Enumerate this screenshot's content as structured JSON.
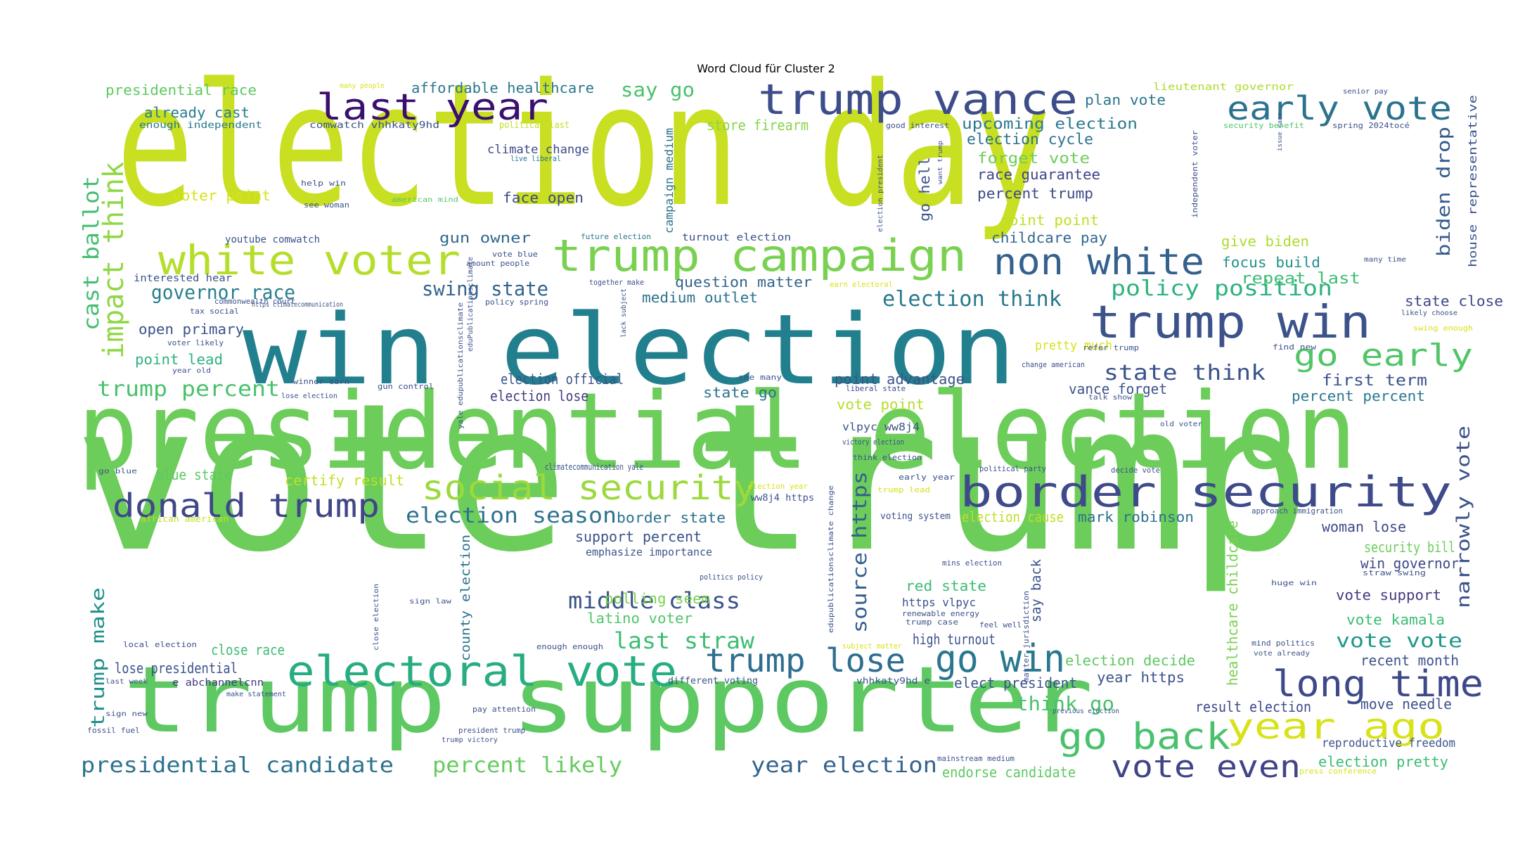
{
  "title": "Word Cloud für Cluster 2",
  "words": [
    {
      "text": "election day",
      "color": "#c8df22"
    },
    {
      "text": "vote trump",
      "color": "#6ccd5a"
    },
    {
      "text": "win election",
      "color": "#22808e"
    },
    {
      "text": "presidential election",
      "color": "#6ccd5a"
    },
    {
      "text": "trump supporter",
      "color": "#5ec962"
    },
    {
      "text": "last year",
      "color": "#3b0f6f"
    },
    {
      "text": "trump vance",
      "color": "#3d4d8a"
    },
    {
      "text": "early vote",
      "color": "#2c728e"
    },
    {
      "text": "white voter",
      "color": "#b5de2b"
    },
    {
      "text": "trump campaign",
      "color": "#7ad151"
    },
    {
      "text": "non white",
      "color": "#34618d"
    },
    {
      "text": "trump win",
      "color": "#3b528b"
    },
    {
      "text": "impact think",
      "color": "#8fd744"
    },
    {
      "text": "cast ballot",
      "color": "#42be71"
    },
    {
      "text": "border security",
      "color": "#3e4a89"
    },
    {
      "text": "donald trump",
      "color": "#3f4788"
    },
    {
      "text": "social security",
      "color": "#9bd93c"
    },
    {
      "text": "electoral vote",
      "color": "#27ad81"
    },
    {
      "text": "trump lose",
      "color": "#2e6e8e"
    },
    {
      "text": "go win",
      "color": "#2a788e"
    },
    {
      "text": "long time",
      "color": "#3e4989"
    },
    {
      "text": "year ago",
      "color": "#d8e219"
    },
    {
      "text": "go back",
      "color": "#4ac16d"
    },
    {
      "text": "vote even",
      "color": "#414487"
    },
    {
      "text": "go early",
      "color": "#52c569"
    },
    {
      "text": "governor race",
      "color": "#287d8e"
    },
    {
      "text": "swing state",
      "color": "#33638d"
    },
    {
      "text": "election think",
      "color": "#2a788e"
    },
    {
      "text": "policy position",
      "color": "#2db27d"
    },
    {
      "text": "state think",
      "color": "#3b528b"
    },
    {
      "text": "trump percent",
      "color": "#4ac16d"
    },
    {
      "text": "presidential candidate",
      "color": "#2c728e"
    },
    {
      "text": "percent likely",
      "color": "#65cb5e"
    },
    {
      "text": "year election",
      "color": "#33638d"
    },
    {
      "text": "election season",
      "color": "#2c728e"
    },
    {
      "text": "middle class",
      "color": "#3b528b"
    },
    {
      "text": "last straw",
      "color": "#3dbc74"
    },
    {
      "text": "source https",
      "color": "#355f8d"
    },
    {
      "text": "narrowly vote",
      "color": "#3b528b"
    },
    {
      "text": "biden drop",
      "color": "#365c8d"
    },
    {
      "text": "trump make",
      "color": "#21918c"
    },
    {
      "text": "think go",
      "color": "#4ac16d"
    },
    {
      "text": "vote vote",
      "color": "#1f988b"
    },
    {
      "text": "say go",
      "color": "#4ac16d"
    },
    {
      "text": "presidential race",
      "color": "#5ec962"
    },
    {
      "text": "affordable healthcare",
      "color": "#2a788e"
    },
    {
      "text": "already cast",
      "color": "#287d8e"
    },
    {
      "text": "upcoming election",
      "color": "#2a788e"
    },
    {
      "text": "election cycle",
      "color": "#2c728e"
    },
    {
      "text": "forget vote",
      "color": "#6ccd5a"
    },
    {
      "text": "race guarantee",
      "color": "#414487"
    },
    {
      "text": "percent trump",
      "color": "#3e4989"
    },
    {
      "text": "point point",
      "color": "#c0df25"
    },
    {
      "text": "childcare pay",
      "color": "#31688e"
    },
    {
      "text": "give biden",
      "color": "#addc30"
    },
    {
      "text": "focus build",
      "color": "#21918c"
    },
    {
      "text": "repeat last",
      "color": "#3dbc74"
    },
    {
      "text": "state close",
      "color": "#3e4989"
    },
    {
      "text": "first term",
      "color": "#3b528b"
    },
    {
      "text": "percent percent",
      "color": "#2a788e"
    },
    {
      "text": "plan vote",
      "color": "#2a788e"
    },
    {
      "text": "store firearm",
      "color": "#86d549"
    },
    {
      "text": "go hell",
      "color": "#3b528b"
    },
    {
      "text": "climate change",
      "color": "#3e4989"
    },
    {
      "text": "face open",
      "color": "#3e4989"
    },
    {
      "text": "gun owner",
      "color": "#31688e"
    },
    {
      "text": "question matter",
      "color": "#33638d"
    },
    {
      "text": "medium outlet",
      "color": "#2c728e"
    },
    {
      "text": "open primary",
      "color": "#3b528b"
    },
    {
      "text": "point lead",
      "color": "#2db27d"
    },
    {
      "text": "point advantage",
      "color": "#3b528b"
    },
    {
      "text": "election official",
      "color": "#3b528b"
    },
    {
      "text": "election lose",
      "color": "#443a83"
    },
    {
      "text": "state go",
      "color": "#2c728e"
    },
    {
      "text": "vance forget",
      "color": "#3b528b"
    },
    {
      "text": "vote point",
      "color": "#b5de2b"
    },
    {
      "text": "blue state",
      "color": "#5ec962"
    },
    {
      "text": "certify result",
      "color": "#c0df25"
    },
    {
      "text": "border state",
      "color": "#2c728e"
    },
    {
      "text": "support percent",
      "color": "#3b528b"
    },
    {
      "text": "polling seem",
      "color": "#7ad151"
    },
    {
      "text": "latino voter",
      "color": "#52c569"
    },
    {
      "text": "close race",
      "color": "#3dbc74"
    },
    {
      "text": "lose presidential",
      "color": "#3b528b"
    },
    {
      "text": "red state",
      "color": "#3dbc74"
    },
    {
      "text": "high turnout",
      "color": "#3b528b"
    },
    {
      "text": "mark robinson",
      "color": "#2c728e"
    },
    {
      "text": "election cause",
      "color": "#c0df25"
    },
    {
      "text": "woman lose",
      "color": "#3e4989"
    },
    {
      "text": "security bill",
      "color": "#6ccd5a"
    },
    {
      "text": "win governor",
      "color": "#3e4989"
    },
    {
      "text": "vote support",
      "color": "#443a83"
    },
    {
      "text": "vote kamala",
      "color": "#3dbc74"
    },
    {
      "text": "recent month",
      "color": "#3b528b"
    },
    {
      "text": "election decide",
      "color": "#5ec962"
    },
    {
      "text": "elect president",
      "color": "#3b528b"
    },
    {
      "text": "year https",
      "color": "#3b528b"
    },
    {
      "text": "result election",
      "color": "#3e4989"
    },
    {
      "text": "move needle",
      "color": "#3b528b"
    },
    {
      "text": "reproductive freedom",
      "color": "#3b528b"
    },
    {
      "text": "election pretty",
      "color": "#3dbc74"
    },
    {
      "text": "endorse candidate",
      "color": "#5ec962"
    },
    {
      "text": "voter point",
      "color": "#d8e219"
    },
    {
      "text": "pretty much",
      "color": "#d8e219"
    },
    {
      "text": "healthcare childcare",
      "color": "#7ad151"
    },
    {
      "text": "house representative",
      "color": "#3b528b"
    },
    {
      "text": "county election",
      "color": "#2c728e"
    },
    {
      "text": "campaign medium",
      "color": "#2c728e"
    },
    {
      "text": "say back",
      "color": "#3b528b"
    },
    {
      "text": "https vlpyc",
      "color": "#3b528b"
    },
    {
      "text": "vlpyc ww8j4",
      "color": "#3b528b"
    },
    {
      "text": "lieutenant governor",
      "color": "#addc30"
    },
    {
      "text": "emphasize importance",
      "color": "#3b528b"
    },
    {
      "text": "youtube comwatch",
      "color": "#3b528b"
    },
    {
      "text": "interested hear",
      "color": "#3b528b"
    },
    {
      "text": "e abchannelcnn",
      "color": "#443a83"
    },
    {
      "text": "ww8j4 https",
      "color": "#3b528b"
    },
    {
      "text": "voting system",
      "color": "#3b528b"
    },
    {
      "text": "turnout election",
      "color": "#3b528b"
    },
    {
      "text": "comwatch vhhkaty9hd",
      "color": "#3b528b"
    },
    {
      "text": "enough independent",
      "color": "#2a788e"
    },
    {
      "text": "political last",
      "color": "#c0df25"
    },
    {
      "text": "help win",
      "color": "#3b528b"
    },
    {
      "text": "see woman",
      "color": "#3b528b"
    },
    {
      "text": "vote blue",
      "color": "#3b528b"
    },
    {
      "text": "amount people",
      "color": "#3b528b"
    },
    {
      "text": "policy spring",
      "color": "#3b528b"
    },
    {
      "text": "together make",
      "color": "#3b528b"
    },
    {
      "text": "future election",
      "color": "#2a788e"
    },
    {
      "text": "good interest",
      "color": "#3b528b"
    },
    {
      "text": "earn electoral",
      "color": "#d8e219"
    },
    {
      "text": "many people",
      "color": "#d8e219"
    },
    {
      "text": "senior pay",
      "color": "#3b528b"
    },
    {
      "text": "security benefit",
      "color": "#52c569"
    },
    {
      "text": "spring 2024tocé",
      "color": "#3b528b"
    },
    {
      "text": "live liberal",
      "color": "#2a788e"
    },
    {
      "text": "american mind",
      "color": "#52c569"
    },
    {
      "text": "tax social",
      "color": "#3b528b"
    },
    {
      "text": "commonwealth court",
      "color": "#3b528b"
    },
    {
      "text": "voter likely",
      "color": "#3b528b"
    },
    {
      "text": "year old",
      "color": "#3b528b"
    },
    {
      "text": "winner earn",
      "color": "#3b528b"
    },
    {
      "text": "lose election",
      "color": "#3b528b"
    },
    {
      "text": "gun control",
      "color": "#3b528b"
    },
    {
      "text": "see many",
      "color": "#3b528b"
    },
    {
      "text": "liberal state",
      "color": "#3b528b"
    },
    {
      "text": "refer trump",
      "color": "#3b528b"
    },
    {
      "text": "find new",
      "color": "#3b528b"
    },
    {
      "text": "change american",
      "color": "#3b528b"
    },
    {
      "text": "talk show",
      "color": "#3b528b"
    },
    {
      "text": "old voter",
      "color": "#3b528b"
    },
    {
      "text": "victory election",
      "color": "#3b528b"
    },
    {
      "text": "think election",
      "color": "#3b528b"
    },
    {
      "text": "political party",
      "color": "#3b528b"
    },
    {
      "text": "decide vote",
      "color": "#3b528b"
    },
    {
      "text": "early year",
      "color": "#3b528b"
    },
    {
      "text": "election year",
      "color": "#d8e219"
    },
    {
      "text": "trump lead",
      "color": "#d8e219"
    },
    {
      "text": "approach immigration",
      "color": "#3b528b"
    },
    {
      "text": "go blue",
      "color": "#3b528b"
    },
    {
      "text": "african american",
      "color": "#c0df25"
    },
    {
      "text": "climatecommunication yale",
      "color": "#3b528b"
    },
    {
      "text": "https climatecommunication",
      "color": "#3b528b"
    },
    {
      "text": "mins election",
      "color": "#3b528b"
    },
    {
      "text": "straw swing",
      "color": "#3b528b"
    },
    {
      "text": "huge win",
      "color": "#3b528b"
    },
    {
      "text": "sign law",
      "color": "#3b528b"
    },
    {
      "text": "feel well",
      "color": "#3b528b"
    },
    {
      "text": "renewable energy",
      "color": "#3b528b"
    },
    {
      "text": "trump case",
      "color": "#3b528b"
    },
    {
      "text": "politics policy",
      "color": "#3b528b"
    },
    {
      "text": "local election",
      "color": "#3b528b"
    },
    {
      "text": "enough enough",
      "color": "#3b528b"
    },
    {
      "text": "subject matter",
      "color": "#d8e219"
    },
    {
      "text": "mind politics",
      "color": "#3b528b"
    },
    {
      "text": "vote already",
      "color": "#3b528b"
    },
    {
      "text": "last week",
      "color": "#3b528b"
    },
    {
      "text": "make statement",
      "color": "#3b528b"
    },
    {
      "text": "different voting",
      "color": "#3b528b"
    },
    {
      "text": "vhhkaty9hd e",
      "color": "#3b528b"
    },
    {
      "text": "sign new",
      "color": "#3b528b"
    },
    {
      "text": "pay attention",
      "color": "#3b528b"
    },
    {
      "text": "previous election",
      "color": "#3b528b"
    },
    {
      "text": "fossil fuel",
      "color": "#3b528b"
    },
    {
      "text": "president trump",
      "color": "#3b528b"
    },
    {
      "text": "trump victory",
      "color": "#3b528b"
    },
    {
      "text": "mainstream medium",
      "color": "#3b528b"
    },
    {
      "text": "press conference",
      "color": "#d8e219"
    },
    {
      "text": "many time",
      "color": "#3b528b"
    },
    {
      "text": "likely choose",
      "color": "#3b528b"
    },
    {
      "text": "swing enough",
      "color": "#d8e219"
    },
    {
      "text": "issue care",
      "color": "#3b528b"
    },
    {
      "text": "independent voter",
      "color": "#3b528b"
    },
    {
      "text": "election president",
      "color": "#3b528b"
    },
    {
      "text": "want trump",
      "color": "#3b528b"
    },
    {
      "text": "lack subject",
      "color": "#3b528b"
    },
    {
      "text": "eduPublicationsclimate",
      "color": "#3b528b"
    },
    {
      "text": "yale edupublicationsclimate",
      "color": "#3b528b"
    },
    {
      "text": "matter jurisdiction",
      "color": "#3b528b"
    },
    {
      "text": "close election",
      "color": "#3b528b"
    },
    {
      "text": "edupublicationsclimate change",
      "color": "#3b528b"
    }
  ]
}
